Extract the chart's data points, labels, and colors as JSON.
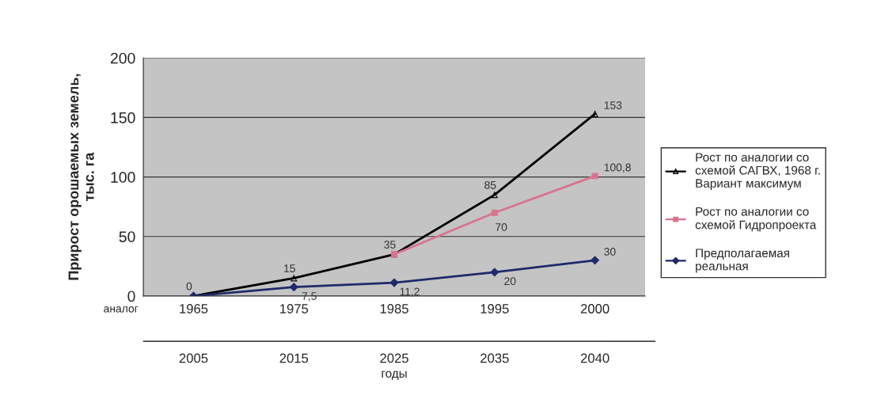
{
  "chart_data": {
    "type": "line",
    "categories": [
      "1965",
      "1975",
      "1985",
      "1995",
      "2000"
    ],
    "xlabel": "годы",
    "ylabel": "Прирост орошаемых земель,\nтыс. га",
    "ylim": [
      0,
      200
    ],
    "yticks": [
      0,
      50,
      100,
      150,
      200
    ],
    "grid": "y",
    "legend": "right",
    "series": [
      {
        "name": "Рост по аналогии со\nсхемой САГВХ, 1968 г.\nВариант максимум",
        "color": "#000000",
        "marker": "triangle",
        "values": [
          0,
          15,
          35,
          85,
          153
        ],
        "value_labels": [
          "0",
          "15",
          "35",
          "85",
          "153"
        ]
      },
      {
        "name": "Рост по аналогии со\nсхемой Гидропроекта",
        "color": "#d9748f",
        "marker": "square",
        "values": [
          null,
          null,
          35,
          70,
          100.8
        ],
        "value_labels": [
          null,
          null,
          null,
          "70",
          "100,8"
        ]
      },
      {
        "name": "Предполагаемая\nреальная",
        "color": "#1f2a6b",
        "marker": "diamond",
        "values": [
          0,
          7.5,
          11.2,
          20,
          30
        ],
        "value_labels": [
          null,
          "7,5",
          "11,2",
          "20",
          "30"
        ]
      }
    ],
    "annotations": [
      "аналог",
      "2005",
      "2015",
      "2025",
      "2035",
      "2040"
    ]
  }
}
